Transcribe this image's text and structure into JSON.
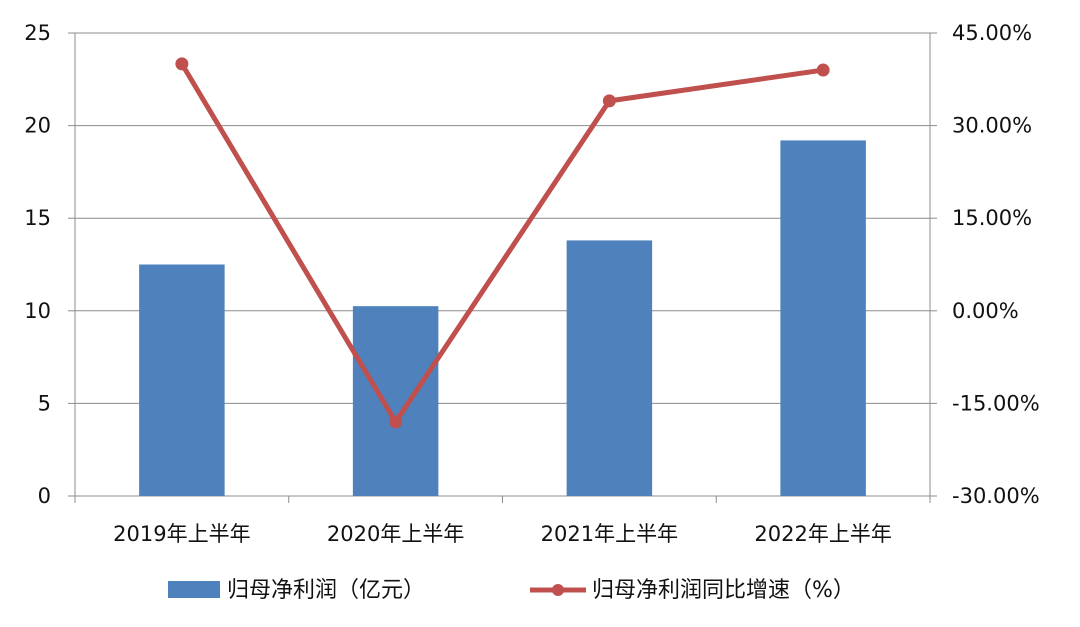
{
  "chart_data": {
    "type": "bar",
    "categories": [
      "2019年上半年",
      "2020年上半年",
      "2021年上半年",
      "2022年上半年"
    ],
    "series": [
      {
        "name": "归母净利润（亿元）",
        "type": "bar",
        "axis": "left",
        "color": "#4F81BD",
        "values": [
          12.5,
          10.25,
          13.8,
          19.2
        ]
      },
      {
        "name": "归母净利润同比增速（%）",
        "type": "line",
        "axis": "right",
        "color": "#C0504D",
        "values": [
          40.0,
          -18.0,
          34.0,
          39.0
        ]
      }
    ],
    "y_left": {
      "ylim": [
        0,
        25
      ],
      "ticks": [
        0,
        5,
        10,
        15,
        20,
        25
      ],
      "tick_labels": [
        "0",
        "5",
        "10",
        "15",
        "20",
        "25"
      ]
    },
    "y_right": {
      "ylim": [
        -30,
        45
      ],
      "ticks": [
        -30,
        -15,
        0,
        15,
        30,
        45
      ],
      "tick_labels": [
        "-30.00%",
        "-15.00%",
        "0.00%",
        "15.00%",
        "30.00%",
        "45.00%"
      ]
    },
    "grid": true,
    "legend_position": "bottom"
  }
}
